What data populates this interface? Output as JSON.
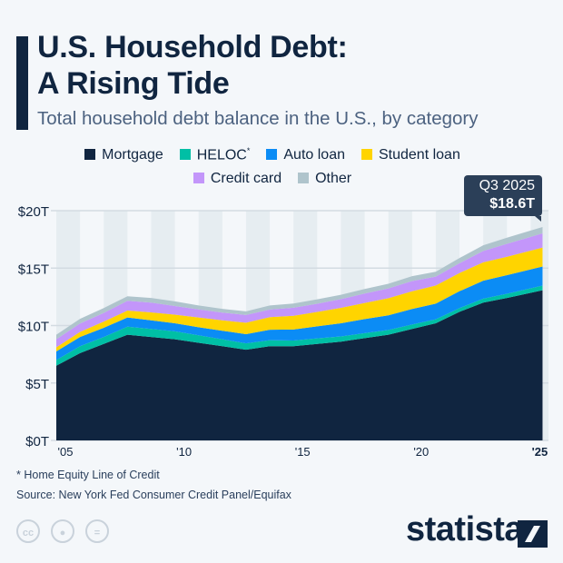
{
  "title_line1": "U.S. Household Debt:",
  "title_line2": "A Rising Tide",
  "subtitle": "Total household debt balance in the U.S., by category",
  "footnote": "* Home Equity Line of Credit",
  "source": "Source: New York Fed Consumer Credit Panel/Equifax",
  "brand": "statista",
  "license_icons": [
    "cc-icon",
    "by-icon",
    "nd-icon"
  ],
  "callout": {
    "period": "Q3 2025",
    "value": "$18.6T"
  },
  "chart_data": {
    "type": "area",
    "stacked": true,
    "title": "U.S. Household Debt: A Rising Tide",
    "subtitle": "Total household debt balance in the U.S., by category",
    "x": [
      2005,
      2006,
      2007,
      2008,
      2009,
      2010,
      2011,
      2012,
      2013,
      2014,
      2015,
      2016,
      2017,
      2018,
      2019,
      2020,
      2021,
      2022,
      2023,
      2024,
      2025.5
    ],
    "xticks": [
      {
        "value": 2005,
        "label": "'05"
      },
      {
        "value": 2010,
        "label": "'10"
      },
      {
        "value": 2015,
        "label": "'15"
      },
      {
        "value": 2020,
        "label": "'20"
      },
      {
        "value": 2025,
        "label": "'25"
      }
    ],
    "yticks": [
      {
        "value": 0,
        "label": "$0T"
      },
      {
        "value": 5,
        "label": "$5T"
      },
      {
        "value": 10,
        "label": "$10T"
      },
      {
        "value": 15,
        "label": "$15T"
      },
      {
        "value": 20,
        "label": "$20T"
      }
    ],
    "ylim": [
      0,
      20
    ],
    "xlim": [
      2005,
      2025.75
    ],
    "yunit": "trillion USD",
    "grid": true,
    "legend_position": "top",
    "series": [
      {
        "name": "Mortgage",
        "color": "#102540",
        "values": [
          6.5,
          7.6,
          8.4,
          9.2,
          9.0,
          8.8,
          8.5,
          8.2,
          7.9,
          8.2,
          8.2,
          8.4,
          8.6,
          8.9,
          9.2,
          9.7,
          10.2,
          11.2,
          12.0,
          12.4,
          13.07
        ]
      },
      {
        "name": "HELOC",
        "label_suffix": "*",
        "color": "#00bfa5",
        "values": [
          0.5,
          0.6,
          0.6,
          0.7,
          0.7,
          0.7,
          0.65,
          0.6,
          0.55,
          0.53,
          0.5,
          0.48,
          0.45,
          0.44,
          0.41,
          0.39,
          0.34,
          0.32,
          0.34,
          0.37,
          0.41
        ]
      },
      {
        "name": "Auto loan",
        "color": "#0b8cf5",
        "values": [
          0.75,
          0.8,
          0.8,
          0.8,
          0.75,
          0.7,
          0.7,
          0.75,
          0.8,
          0.9,
          0.95,
          1.05,
          1.15,
          1.22,
          1.28,
          1.35,
          1.37,
          1.47,
          1.56,
          1.62,
          1.66
        ]
      },
      {
        "name": "Student loan",
        "color": "#ffd400",
        "values": [
          0.35,
          0.45,
          0.55,
          0.6,
          0.7,
          0.75,
          0.85,
          0.9,
          1.0,
          1.1,
          1.2,
          1.26,
          1.34,
          1.41,
          1.49,
          1.54,
          1.58,
          1.59,
          1.6,
          1.6,
          1.65
        ]
      },
      {
        "name": "Credit card",
        "color": "#c396fa",
        "values": [
          0.7,
          0.73,
          0.75,
          0.85,
          0.85,
          0.75,
          0.7,
          0.68,
          0.67,
          0.66,
          0.7,
          0.71,
          0.76,
          0.82,
          0.85,
          0.89,
          0.77,
          0.84,
          0.99,
          1.12,
          1.23
        ]
      },
      {
        "name": "Other",
        "color": "#afc4cc",
        "values": [
          0.4,
          0.4,
          0.42,
          0.4,
          0.4,
          0.4,
          0.35,
          0.32,
          0.32,
          0.36,
          0.37,
          0.38,
          0.38,
          0.39,
          0.41,
          0.43,
          0.42,
          0.46,
          0.5,
          0.54,
          0.56
        ]
      }
    ],
    "annotations": [
      {
        "x": 2025.5,
        "text": "Q3 2025 $18.6T"
      }
    ]
  }
}
